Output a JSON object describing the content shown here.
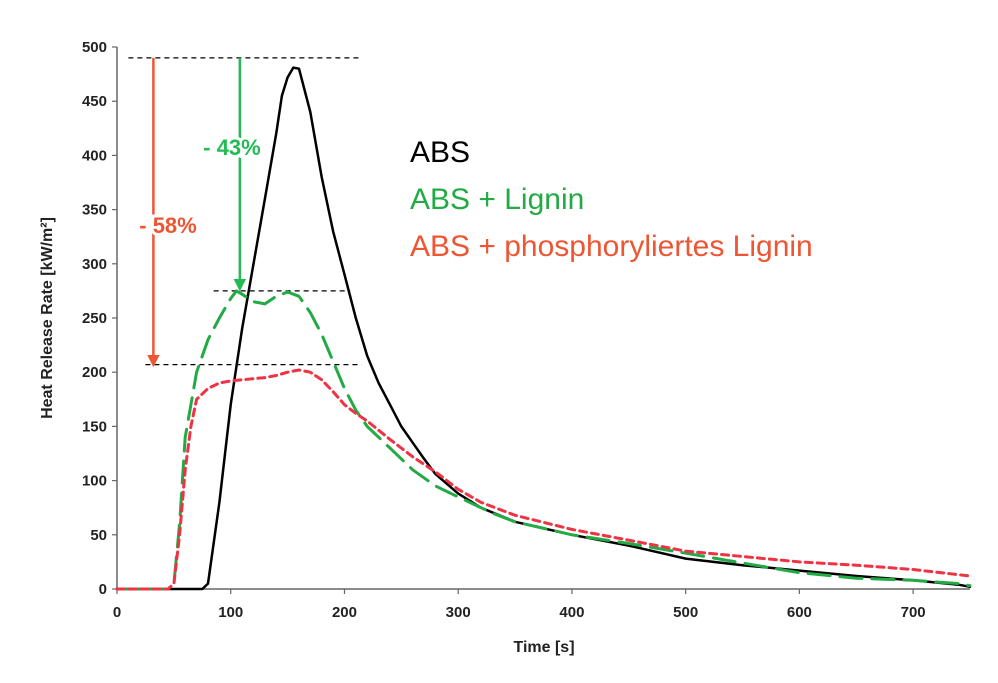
{
  "chart_data": {
    "type": "line",
    "title": "",
    "xlabel": "Time [s]",
    "ylabel": "Heat Release Rate [kW/m²]",
    "xlim": [
      0,
      750
    ],
    "ylim": [
      0,
      500
    ],
    "x_ticks": [
      0,
      100,
      200,
      300,
      400,
      500,
      600,
      700
    ],
    "y_ticks": [
      0,
      50,
      100,
      150,
      200,
      250,
      300,
      350,
      400,
      450,
      500
    ],
    "grid": false,
    "legend_position": "top-right",
    "series": [
      {
        "name": "ABS",
        "color": "#000000",
        "style": "solid",
        "points": [
          [
            0,
            0
          ],
          [
            75,
            0
          ],
          [
            80,
            5
          ],
          [
            90,
            80
          ],
          [
            100,
            170
          ],
          [
            110,
            240
          ],
          [
            120,
            300
          ],
          [
            130,
            360
          ],
          [
            140,
            420
          ],
          [
            145,
            455
          ],
          [
            150,
            472
          ],
          [
            155,
            481
          ],
          [
            160,
            480
          ],
          [
            170,
            440
          ],
          [
            180,
            380
          ],
          [
            190,
            330
          ],
          [
            200,
            290
          ],
          [
            210,
            250
          ],
          [
            220,
            215
          ],
          [
            230,
            190
          ],
          [
            240,
            170
          ],
          [
            250,
            150
          ],
          [
            260,
            135
          ],
          [
            270,
            120
          ],
          [
            280,
            106
          ],
          [
            300,
            88
          ],
          [
            320,
            75
          ],
          [
            350,
            62
          ],
          [
            400,
            50
          ],
          [
            450,
            40
          ],
          [
            500,
            28
          ],
          [
            550,
            22
          ],
          [
            600,
            17
          ],
          [
            650,
            12
          ],
          [
            700,
            8
          ],
          [
            740,
            4
          ],
          [
            750,
            2
          ]
        ]
      },
      {
        "name": "ABS + Lignin",
        "color": "#22aa44",
        "style": "dashed",
        "points": [
          [
            0,
            0
          ],
          [
            45,
            0
          ],
          [
            50,
            5
          ],
          [
            55,
            60
          ],
          [
            60,
            140
          ],
          [
            70,
            200
          ],
          [
            80,
            230
          ],
          [
            90,
            250
          ],
          [
            100,
            268
          ],
          [
            105,
            275
          ],
          [
            110,
            272
          ],
          [
            120,
            265
          ],
          [
            130,
            263
          ],
          [
            140,
            270
          ],
          [
            150,
            274
          ],
          [
            160,
            270
          ],
          [
            170,
            255
          ],
          [
            180,
            235
          ],
          [
            190,
            210
          ],
          [
            200,
            185
          ],
          [
            210,
            165
          ],
          [
            220,
            150
          ],
          [
            240,
            130
          ],
          [
            260,
            110
          ],
          [
            280,
            95
          ],
          [
            300,
            85
          ],
          [
            330,
            70
          ],
          [
            350,
            62
          ],
          [
            400,
            50
          ],
          [
            450,
            42
          ],
          [
            500,
            33
          ],
          [
            550,
            24
          ],
          [
            600,
            15
          ],
          [
            650,
            10
          ],
          [
            700,
            8
          ],
          [
            740,
            5
          ],
          [
            750,
            3
          ]
        ]
      },
      {
        "name": "ABS + phosphoryliertes Lignin",
        "color": "#ee3344",
        "style": "dotted",
        "points": [
          [
            0,
            0
          ],
          [
            45,
            0
          ],
          [
            50,
            5
          ],
          [
            55,
            50
          ],
          [
            60,
            110
          ],
          [
            65,
            150
          ],
          [
            70,
            175
          ],
          [
            80,
            185
          ],
          [
            90,
            190
          ],
          [
            100,
            192
          ],
          [
            110,
            193
          ],
          [
            130,
            195
          ],
          [
            140,
            197
          ],
          [
            150,
            200
          ],
          [
            160,
            202
          ],
          [
            170,
            200
          ],
          [
            180,
            193
          ],
          [
            190,
            182
          ],
          [
            200,
            170
          ],
          [
            210,
            162
          ],
          [
            220,
            155
          ],
          [
            240,
            138
          ],
          [
            260,
            122
          ],
          [
            280,
            108
          ],
          [
            300,
            92
          ],
          [
            320,
            80
          ],
          [
            350,
            68
          ],
          [
            400,
            55
          ],
          [
            450,
            45
          ],
          [
            500,
            35
          ],
          [
            550,
            30
          ],
          [
            600,
            25
          ],
          [
            650,
            22
          ],
          [
            700,
            18
          ],
          [
            750,
            12
          ]
        ]
      }
    ],
    "legend": [
      {
        "label": "ABS",
        "color": "#000000"
      },
      {
        "label": "ABS + Lignin",
        "color": "#22aa44"
      },
      {
        "label": "ABS + phosphoryliertes Lignin",
        "color": "#ee5533"
      }
    ],
    "annotations": [
      {
        "text": "- 43%",
        "color": "#22bb55",
        "from_y": 490,
        "to_y": 275,
        "x": 108
      },
      {
        "text": "- 58%",
        "color": "#ee5533",
        "from_y": 490,
        "to_y": 205,
        "x": 32
      }
    ],
    "reference_lines": [
      {
        "y": 490,
        "x_from": 10,
        "x_to": 215
      },
      {
        "y": 275,
        "x_from": 85,
        "x_to": 205
      },
      {
        "y": 207,
        "x_from": 25,
        "x_to": 215
      }
    ]
  }
}
